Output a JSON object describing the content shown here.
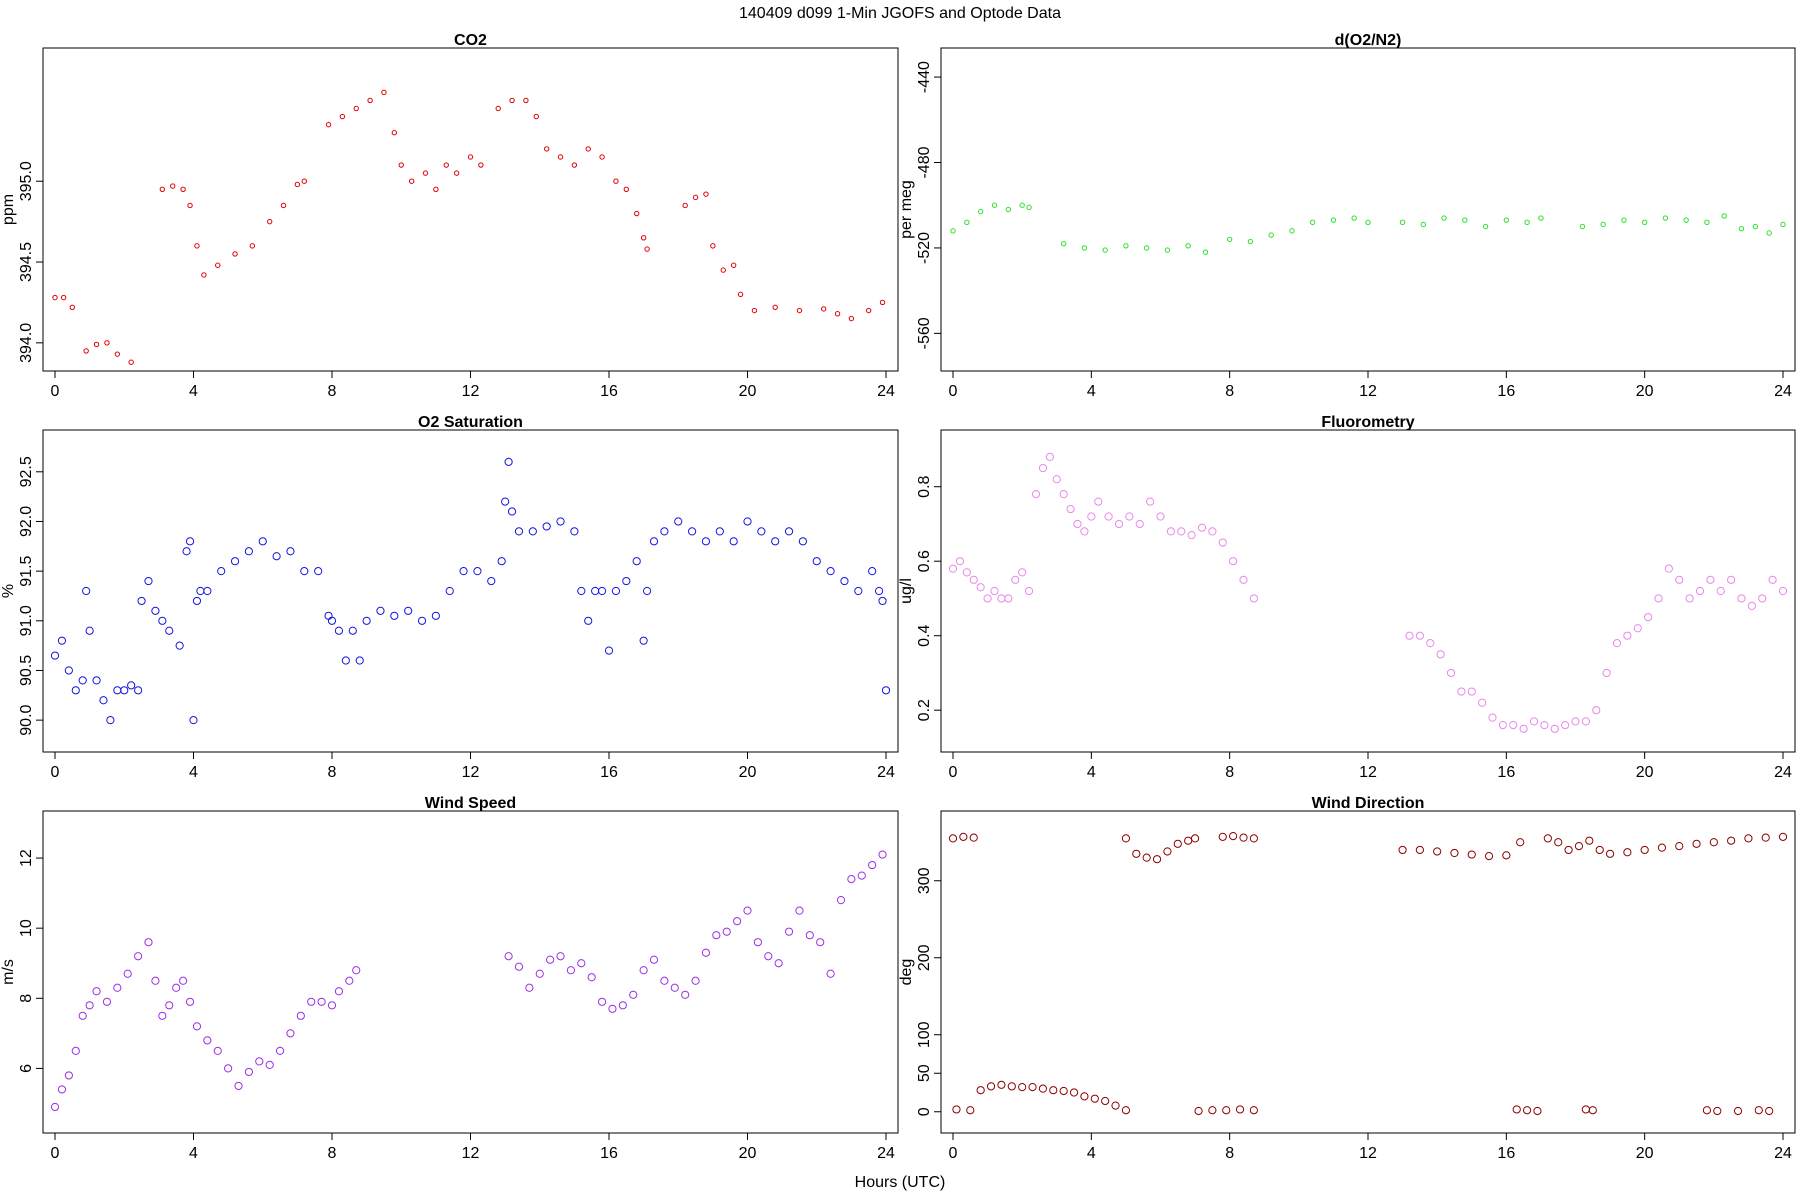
{
  "figure": {
    "title": "140409   d099   1-Min  JGOFS and Optode Data",
    "xlabel": "Hours (UTC)"
  },
  "chart_data": [
    {
      "type": "scatter",
      "title": "CO2",
      "ylabel": "ppm",
      "color": "#e00000",
      "xlim": [
        0,
        24
      ],
      "ylim": [
        393.9,
        395.75
      ],
      "xticks": [
        0,
        4,
        8,
        12,
        16,
        20,
        24
      ],
      "yticks": [
        394.0,
        394.5,
        395.0
      ],
      "ytick_labels": [
        "394.0",
        "394.5",
        "395.0"
      ],
      "series": [
        {
          "x": [
            0.0,
            0.25,
            0.5,
            0.9,
            1.2,
            1.5,
            1.8,
            2.2
          ],
          "y": [
            394.28,
            394.28,
            394.22,
            393.95,
            393.99,
            394.0,
            393.93,
            393.88
          ]
        },
        {
          "x": [
            3.1,
            3.4,
            3.7,
            3.9,
            4.1,
            4.3,
            4.7,
            5.2,
            5.7,
            6.2,
            6.6,
            7.0,
            7.2
          ],
          "y": [
            394.95,
            394.97,
            394.95,
            394.85,
            394.6,
            394.42,
            394.48,
            394.55,
            394.6,
            394.75,
            394.85,
            394.98,
            395.0
          ]
        },
        {
          "x": [
            7.9,
            8.3,
            8.7,
            9.1,
            9.5,
            9.8,
            10.0,
            10.3,
            10.7,
            11.0,
            11.3,
            11.6,
            12.0,
            12.3
          ],
          "y": [
            395.35,
            395.4,
            395.45,
            395.5,
            395.55,
            395.3,
            395.1,
            395.0,
            395.05,
            394.95,
            395.1,
            395.05,
            395.15,
            395.1
          ]
        },
        {
          "x": [
            12.8,
            13.2,
            13.6,
            13.9,
            14.2,
            14.6,
            15.0,
            15.4,
            15.8,
            16.2,
            16.5,
            16.8,
            17.0,
            17.1
          ],
          "y": [
            395.45,
            395.5,
            395.5,
            395.4,
            395.2,
            395.15,
            395.1,
            395.2,
            395.15,
            395.0,
            394.95,
            394.8,
            394.65,
            394.58
          ]
        },
        {
          "x": [
            18.2,
            18.5,
            18.8,
            19.0,
            19.3,
            19.6,
            19.8,
            20.2,
            20.8,
            21.5,
            22.2,
            22.6,
            23.0,
            23.5,
            23.9
          ],
          "y": [
            394.85,
            394.9,
            394.92,
            394.6,
            394.45,
            394.48,
            394.3,
            394.2,
            394.22,
            394.2,
            394.21,
            394.18,
            394.15,
            394.2,
            394.25
          ]
        }
      ]
    },
    {
      "type": "scatter",
      "title": "d(O2/N2)",
      "ylabel": "per meg",
      "color": "#2ee02e",
      "xlim": [
        0,
        24
      ],
      "ylim": [
        -572,
        -432
      ],
      "xticks": [
        0,
        4,
        8,
        12,
        16,
        20,
        24
      ],
      "yticks": [
        -560,
        -520,
        -480,
        -440
      ],
      "ytick_labels": [
        "-560",
        "-520",
        "-480",
        "-440"
      ],
      "series": [
        {
          "x": [
            0.0,
            0.4,
            0.8,
            1.2,
            1.6,
            2.0,
            2.2
          ],
          "y": [
            -512,
            -508,
            -503,
            -500,
            -502,
            -500,
            -501
          ]
        },
        {
          "x": [
            3.2,
            3.8,
            4.4,
            5.0,
            5.6,
            6.2,
            6.8,
            7.3
          ],
          "y": [
            -518,
            -520,
            -521,
            -519,
            -520,
            -521,
            -519,
            -522
          ]
        },
        {
          "x": [
            8.0,
            8.6,
            9.2,
            9.8,
            10.4,
            11.0,
            11.6,
            12.0
          ],
          "y": [
            -516,
            -517,
            -514,
            -512,
            -508,
            -507,
            -506,
            -508
          ]
        },
        {
          "x": [
            13.0,
            13.6,
            14.2,
            14.8,
            15.4,
            16.0,
            16.6,
            17.0
          ],
          "y": [
            -508,
            -509,
            -506,
            -507,
            -510,
            -507,
            -508,
            -506
          ]
        },
        {
          "x": [
            18.2,
            18.8,
            19.4,
            20.0,
            20.6,
            21.2,
            21.8,
            22.3
          ],
          "y": [
            -510,
            -509,
            -507,
            -508,
            -506,
            -507,
            -508,
            -505
          ]
        },
        {
          "x": [
            22.8,
            23.2,
            23.6,
            24.0
          ],
          "y": [
            -511,
            -510,
            -513,
            -509
          ]
        }
      ]
    },
    {
      "type": "scatter",
      "title": "O2 Saturation",
      "ylabel": "%",
      "color": "#1515e0",
      "xlim": [
        0,
        24
      ],
      "ylim": [
        89.8,
        92.8
      ],
      "xticks": [
        0,
        4,
        8,
        12,
        16,
        20,
        24
      ],
      "yticks": [
        90.0,
        90.5,
        91.0,
        91.5,
        92.0,
        92.5
      ],
      "ytick_labels": [
        "90.0",
        "90.5",
        "91.0",
        "91.5",
        "92.0",
        "92.5"
      ],
      "series": [
        {
          "x": [
            0.0,
            0.2,
            0.4,
            0.6,
            0.8,
            0.9,
            1.0,
            1.2,
            1.4,
            1.6,
            1.8,
            2.0,
            2.2,
            2.4,
            2.5,
            2.7,
            2.9,
            3.1,
            3.3,
            3.6,
            3.8,
            3.9,
            4.0,
            4.1,
            4.2,
            4.4,
            4.8,
            5.2,
            5.6,
            6.0,
            6.4,
            6.8,
            7.2,
            7.6,
            7.9,
            8.0,
            8.2,
            8.4,
            8.6,
            8.8,
            9.0,
            9.4,
            9.8,
            10.2,
            10.6,
            11.0,
            11.4,
            11.8,
            12.2,
            12.6,
            12.9,
            13.0,
            13.1,
            13.2,
            13.4,
            13.8,
            14.2,
            14.6,
            15.0,
            15.2,
            15.4,
            15.6,
            15.8,
            16.0,
            16.2,
            16.5,
            16.8,
            17.0,
            17.1,
            17.3,
            17.6,
            18.0,
            18.4,
            18.8,
            19.2,
            19.6,
            20.0,
            20.4,
            20.8,
            21.2,
            21.6,
            22.0,
            22.4,
            22.8,
            23.2,
            23.6,
            23.8,
            23.9,
            24.0
          ],
          "y": [
            90.65,
            90.8,
            90.5,
            90.3,
            90.4,
            91.3,
            90.9,
            90.4,
            90.2,
            90.0,
            90.3,
            90.3,
            90.35,
            90.3,
            91.2,
            91.4,
            91.1,
            91.0,
            90.9,
            90.75,
            91.7,
            91.8,
            90.0,
            91.2,
            91.3,
            91.3,
            91.5,
            91.6,
            91.7,
            91.8,
            91.65,
            91.7,
            91.5,
            91.5,
            91.05,
            91.0,
            90.9,
            90.6,
            90.9,
            90.6,
            91.0,
            91.1,
            91.05,
            91.1,
            91.0,
            91.05,
            91.3,
            91.5,
            91.5,
            91.4,
            91.6,
            92.2,
            92.6,
            92.1,
            91.9,
            91.9,
            91.95,
            92.0,
            91.9,
            91.3,
            91.0,
            91.3,
            91.3,
            90.7,
            91.3,
            91.4,
            91.6,
            90.8,
            91.3,
            91.8,
            91.9,
            92.0,
            91.9,
            91.8,
            91.9,
            91.8,
            92.0,
            91.9,
            91.8,
            91.9,
            91.8,
            91.6,
            91.5,
            91.4,
            91.3,
            91.5,
            91.3,
            91.2,
            90.3
          ]
        }
      ]
    },
    {
      "type": "scatter",
      "title": "Fluorometry",
      "ylabel": "ug/l",
      "color": "#e888e8",
      "xlim": [
        0,
        24
      ],
      "ylim": [
        0.12,
        0.92
      ],
      "xticks": [
        0,
        4,
        8,
        12,
        16,
        20,
        24
      ],
      "yticks": [
        0.2,
        0.4,
        0.6,
        0.8
      ],
      "ytick_labels": [
        "0.2",
        "0.4",
        "0.6",
        "0.8"
      ],
      "series": [
        {
          "x": [
            0.0,
            0.2,
            0.4,
            0.6,
            0.8,
            1.0,
            1.2,
            1.4,
            1.6,
            1.8,
            2.0,
            2.2,
            2.4,
            2.6,
            2.8,
            3.0,
            3.2,
            3.4,
            3.6,
            3.8,
            4.0,
            4.2,
            4.5,
            4.8,
            5.1,
            5.4,
            5.7,
            6.0,
            6.3,
            6.6,
            6.9,
            7.2,
            7.5,
            7.8,
            8.1,
            8.4,
            8.7
          ],
          "y": [
            0.58,
            0.6,
            0.57,
            0.55,
            0.53,
            0.5,
            0.52,
            0.5,
            0.5,
            0.55,
            0.57,
            0.52,
            0.78,
            0.85,
            0.88,
            0.82,
            0.78,
            0.74,
            0.7,
            0.68,
            0.72,
            0.76,
            0.72,
            0.7,
            0.72,
            0.7,
            0.76,
            0.72,
            0.68,
            0.68,
            0.67,
            0.69,
            0.68,
            0.65,
            0.6,
            0.55,
            0.5
          ]
        },
        {
          "x": [
            13.2,
            13.5,
            13.8,
            14.1,
            14.4,
            14.7,
            15.0,
            15.3,
            15.6,
            15.9,
            16.2,
            16.5,
            16.8,
            17.1,
            17.4,
            17.7,
            18.0,
            18.3,
            18.6,
            18.9,
            19.2,
            19.5,
            19.8,
            20.1,
            20.4,
            20.7,
            21.0,
            21.3,
            21.6,
            21.9,
            22.2,
            22.5,
            22.8,
            23.1,
            23.4,
            23.7,
            24.0
          ],
          "y": [
            0.4,
            0.4,
            0.38,
            0.35,
            0.3,
            0.25,
            0.25,
            0.22,
            0.18,
            0.16,
            0.16,
            0.15,
            0.17,
            0.16,
            0.15,
            0.16,
            0.17,
            0.17,
            0.2,
            0.3,
            0.38,
            0.4,
            0.42,
            0.45,
            0.5,
            0.58,
            0.55,
            0.5,
            0.52,
            0.55,
            0.52,
            0.55,
            0.5,
            0.48,
            0.5,
            0.55,
            0.52
          ]
        }
      ]
    },
    {
      "type": "scatter",
      "title": "Wind Speed",
      "ylabel": "m/s",
      "color": "#9a30e8",
      "xlim": [
        0,
        24
      ],
      "ylim": [
        4.5,
        13
      ],
      "xticks": [
        0,
        4,
        8,
        12,
        16,
        20,
        24
      ],
      "yticks": [
        6,
        8,
        10,
        12
      ],
      "ytick_labels": [
        "6",
        "8",
        "10",
        "12"
      ],
      "series": [
        {
          "x": [
            0.0,
            0.2,
            0.4,
            0.6,
            0.8,
            1.0,
            1.2,
            1.5,
            1.8,
            2.1,
            2.4,
            2.7,
            2.9,
            3.1,
            3.3,
            3.5,
            3.7,
            3.9,
            4.1,
            4.4,
            4.7,
            5.0,
            5.3,
            5.6,
            5.9,
            6.2,
            6.5,
            6.8,
            7.1,
            7.4,
            7.7,
            8.0,
            8.2,
            8.5,
            8.7
          ],
          "y": [
            4.9,
            5.4,
            5.8,
            6.5,
            7.5,
            7.8,
            8.2,
            7.9,
            8.3,
            8.7,
            9.2,
            9.6,
            8.5,
            7.5,
            7.8,
            8.3,
            8.5,
            7.9,
            7.2,
            6.8,
            6.5,
            6.0,
            5.5,
            5.9,
            6.2,
            6.1,
            6.5,
            7.0,
            7.5,
            7.9,
            7.9,
            7.8,
            8.2,
            8.5,
            8.8
          ]
        },
        {
          "x": [
            13.1,
            13.4,
            13.7,
            14.0,
            14.3,
            14.6,
            14.9,
            15.2,
            15.5,
            15.8,
            16.1,
            16.4,
            16.7,
            17.0,
            17.3,
            17.6,
            17.9,
            18.2,
            18.5,
            18.8,
            19.1,
            19.4,
            19.7,
            20.0,
            20.3,
            20.6,
            20.9,
            21.2,
            21.5,
            21.8,
            22.1,
            22.4,
            22.7,
            23.0,
            23.3,
            23.6,
            23.9
          ],
          "y": [
            9.2,
            8.9,
            8.3,
            8.7,
            9.1,
            9.2,
            8.8,
            9.0,
            8.6,
            7.9,
            7.7,
            7.8,
            8.1,
            8.8,
            9.1,
            8.5,
            8.3,
            8.1,
            8.5,
            9.3,
            9.8,
            9.9,
            10.2,
            10.5,
            9.6,
            9.2,
            9.0,
            9.9,
            10.5,
            9.8,
            9.6,
            8.7,
            10.8,
            11.4,
            11.5,
            11.8,
            12.1
          ]
        }
      ]
    },
    {
      "type": "scatter",
      "title": "Wind Direction",
      "ylabel": "deg",
      "color": "#8b0000",
      "xlim": [
        0,
        24
      ],
      "ylim": [
        -12,
        375
      ],
      "xticks": [
        0,
        4,
        8,
        12,
        16,
        20,
        24
      ],
      "yticks": [
        0,
        50,
        100,
        200,
        300
      ],
      "ytick_labels": [
        "0",
        "50",
        "100",
        "200",
        "300"
      ],
      "series": [
        {
          "x": [
            0.0,
            0.3,
            0.6
          ],
          "y": [
            355,
            357,
            356
          ]
        },
        {
          "x": [
            0.1,
            0.5,
            0.8,
            1.1,
            1.4,
            1.7,
            2.0,
            2.3,
            2.6,
            2.9,
            3.2,
            3.5,
            3.8,
            4.1,
            4.4,
            4.7,
            5.0
          ],
          "y": [
            3,
            2,
            28,
            33,
            35,
            33,
            32,
            32,
            30,
            28,
            27,
            25,
            20,
            17,
            14,
            8,
            2
          ]
        },
        {
          "x": [
            5.0,
            5.3,
            5.6,
            5.9,
            6.2,
            6.5,
            6.8,
            7.0
          ],
          "y": [
            355,
            335,
            330,
            328,
            338,
            348,
            352,
            355
          ]
        },
        {
          "x": [
            7.8,
            8.1,
            8.4,
            8.7
          ],
          "y": [
            357,
            358,
            356,
            355
          ]
        },
        {
          "x": [
            7.1,
            7.5,
            7.9,
            8.3,
            8.7
          ],
          "y": [
            1,
            2,
            2,
            3,
            2
          ]
        },
        {
          "x": [
            13.0,
            13.5,
            14.0,
            14.5,
            15.0,
            15.5,
            16.0,
            16.4
          ],
          "y": [
            340,
            340,
            338,
            336,
            334,
            332,
            333,
            350
          ]
        },
        {
          "x": [
            16.3,
            16.6,
            16.9
          ],
          "y": [
            3,
            2,
            1
          ]
        },
        {
          "x": [
            17.2,
            17.5,
            17.8,
            18.1,
            18.4,
            18.7,
            19.0,
            19.5,
            20.0,
            20.5,
            21.0,
            21.5,
            22.0,
            22.5,
            23.0,
            23.5,
            24.0
          ],
          "y": [
            355,
            350,
            340,
            345,
            352,
            340,
            335,
            337,
            340,
            343,
            345,
            348,
            350,
            352,
            355,
            356,
            357
          ]
        },
        {
          "x": [
            18.3,
            18.5
          ],
          "y": [
            3,
            2
          ]
        },
        {
          "x": [
            21.8,
            22.1,
            22.7,
            23.3,
            23.6
          ],
          "y": [
            2,
            1,
            1,
            2,
            1
          ]
        }
      ]
    }
  ]
}
